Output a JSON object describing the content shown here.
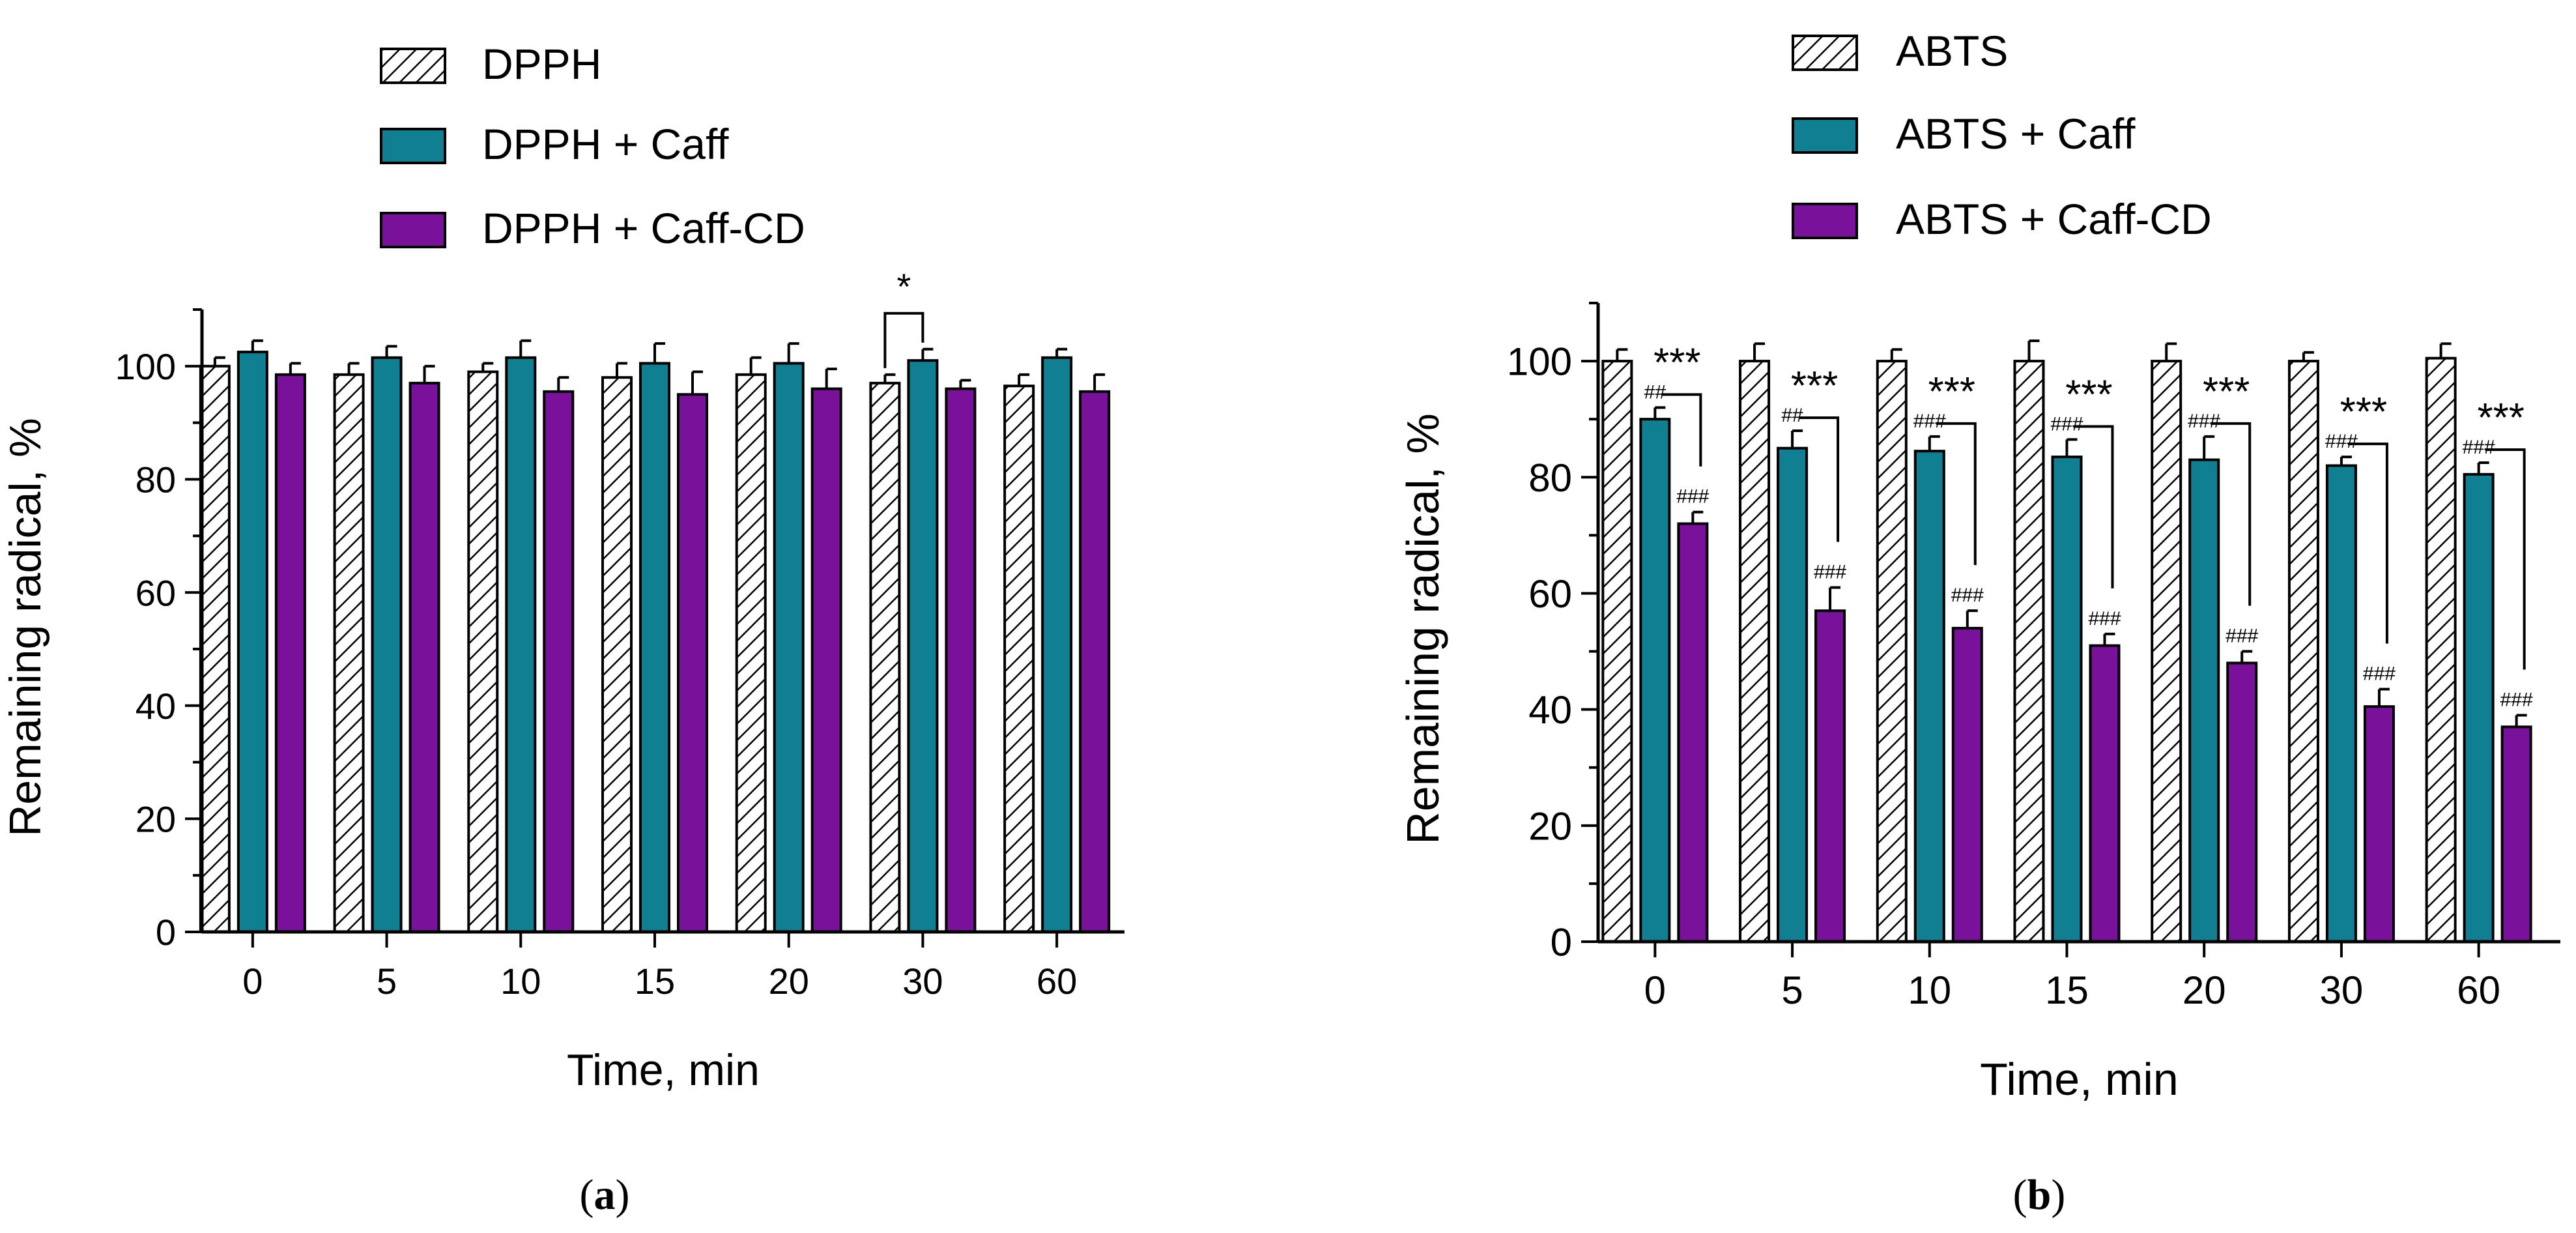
{
  "colors": {
    "caff": "#0f7f91",
    "caffcd": "#7a119a",
    "hatch": "#000000",
    "axis": "#000000"
  },
  "chart_data": [
    {
      "id": "a",
      "type": "bar",
      "panel_label": "a",
      "xlabel": "Time, min",
      "ylabel": "Remaining radical, %",
      "ylim": [
        0,
        110
      ],
      "yticks": [
        0,
        20,
        40,
        60,
        80,
        100
      ],
      "categories": [
        "0",
        "5",
        "10",
        "15",
        "20",
        "30",
        "60"
      ],
      "series": [
        {
          "name": "DPPH",
          "style": "hatch",
          "values": [
            100,
            98.5,
            99,
            98,
            98.5,
            97,
            96.5
          ],
          "errors": [
            1.5,
            2,
            1.5,
            2.5,
            3,
            1.5,
            2
          ]
        },
        {
          "name": "DPPH + Caff",
          "style": "caff",
          "values": [
            102.5,
            101.5,
            101.5,
            100.5,
            100.5,
            101,
            101.5
          ],
          "errors": [
            2,
            2,
            3,
            3.5,
            3.5,
            2,
            1.5
          ]
        },
        {
          "name": "DPPH + Caff-CD",
          "style": "caffcd",
          "values": [
            98.5,
            97,
            95.5,
            95,
            96,
            96,
            95.5
          ],
          "errors": [
            2,
            3,
            2.5,
            4,
            3.5,
            1.5,
            3
          ]
        }
      ],
      "significance": [
        {
          "category": "30",
          "from": 0,
          "to": 1,
          "label": "*"
        }
      ],
      "bar_labels": []
    },
    {
      "id": "b",
      "type": "bar",
      "panel_label": "b",
      "xlabel": "Time, min",
      "ylabel": "Remaining radical, %",
      "ylim": [
        0,
        110
      ],
      "yticks": [
        0,
        20,
        40,
        60,
        80,
        100
      ],
      "categories": [
        "0",
        "5",
        "10",
        "15",
        "20",
        "30",
        "60"
      ],
      "series": [
        {
          "name": "ABTS",
          "style": "hatch",
          "values": [
            100,
            100,
            100,
            100,
            100,
            100,
            100.5
          ],
          "errors": [
            2,
            3,
            2,
            3.5,
            3,
            1.5,
            2.5
          ]
        },
        {
          "name": "ABTS + Caff",
          "style": "caff",
          "values": [
            90,
            85,
            84.5,
            83.5,
            83,
            82,
            80.5
          ],
          "errors": [
            2,
            3,
            2.5,
            3,
            4,
            1.5,
            2
          ]
        },
        {
          "name": "ABTS + Caff-CD",
          "style": "caffcd",
          "values": [
            72,
            57,
            54,
            51,
            48,
            40.5,
            37
          ],
          "errors": [
            2,
            4,
            3,
            2,
            2,
            3,
            2
          ]
        }
      ],
      "significance": [
        {
          "category": "0",
          "from": 1,
          "to": 2,
          "label": "***"
        },
        {
          "category": "5",
          "from": 1,
          "to": 2,
          "label": "***"
        },
        {
          "category": "10",
          "from": 1,
          "to": 2,
          "label": "***"
        },
        {
          "category": "15",
          "from": 1,
          "to": 2,
          "label": "***"
        },
        {
          "category": "20",
          "from": 1,
          "to": 2,
          "label": "***"
        },
        {
          "category": "30",
          "from": 1,
          "to": 2,
          "label": "***"
        },
        {
          "category": "60",
          "from": 1,
          "to": 2,
          "label": "***"
        }
      ],
      "bar_labels": [
        {
          "category": "0",
          "series": 1,
          "label": "##"
        },
        {
          "category": "0",
          "series": 2,
          "label": "###"
        },
        {
          "category": "5",
          "series": 1,
          "label": "##"
        },
        {
          "category": "5",
          "series": 2,
          "label": "###"
        },
        {
          "category": "10",
          "series": 1,
          "label": "###"
        },
        {
          "category": "10",
          "series": 2,
          "label": "###"
        },
        {
          "category": "15",
          "series": 1,
          "label": "###"
        },
        {
          "category": "15",
          "series": 2,
          "label": "###"
        },
        {
          "category": "20",
          "series": 1,
          "label": "###"
        },
        {
          "category": "20",
          "series": 2,
          "label": "###"
        },
        {
          "category": "30",
          "series": 1,
          "label": "###"
        },
        {
          "category": "30",
          "series": 2,
          "label": "###"
        },
        {
          "category": "60",
          "series": 1,
          "label": "###"
        },
        {
          "category": "60",
          "series": 2,
          "label": "###"
        }
      ]
    }
  ]
}
